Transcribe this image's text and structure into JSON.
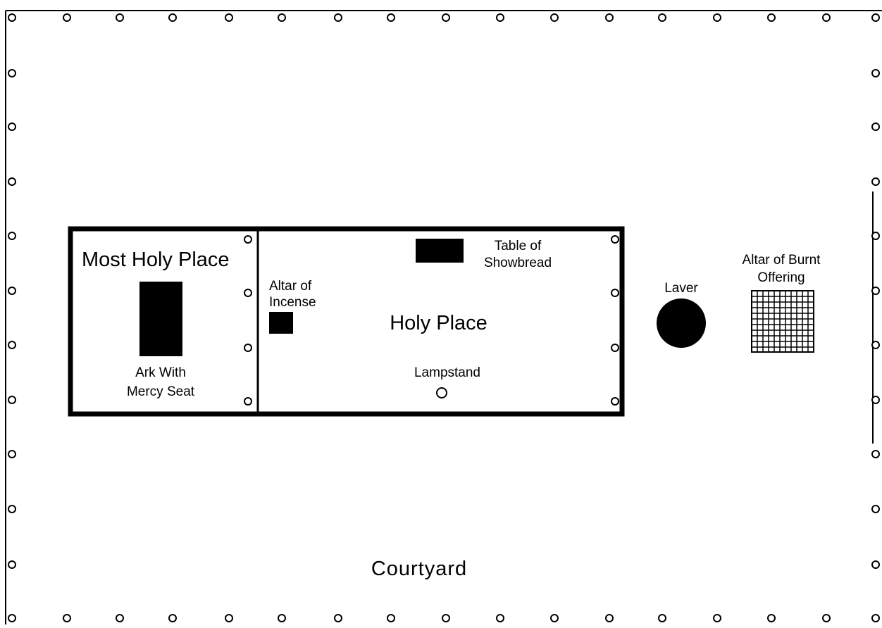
{
  "diagram": {
    "courtyard_label": "Courtyard",
    "most_holy_place_label": "Most Holy Place",
    "holy_place_label": "Holy Place",
    "ark_label_line1": "Ark With",
    "ark_label_line2": "Mercy Seat",
    "altar_incense_line1": "Altar of",
    "altar_incense_line2": "Incense",
    "table_line1": "Table of",
    "table_line2": "Showbread",
    "lampstand_label": "Lampstand",
    "laver_label": "Laver",
    "burnt_altar_line1": "Altar of Burnt",
    "burnt_altar_line2": "Offering"
  },
  "colors": {
    "ink": "#000000",
    "background": "#ffffff"
  }
}
